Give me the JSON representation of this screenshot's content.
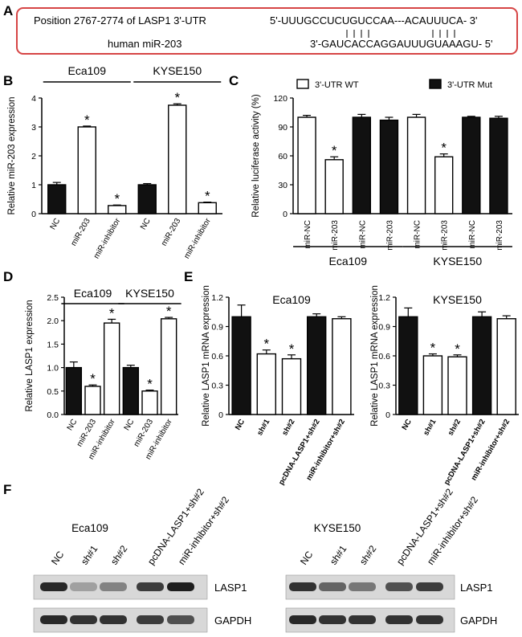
{
  "panels": {
    "A": "A",
    "B": "B",
    "C": "C",
    "D": "D",
    "E": "E",
    "F": "F"
  },
  "panel_a": {
    "position_label": "Position 2767-2774 of LASP1 3'-UTR",
    "utr_sequence": "5'-UUUGCCUCUGUCCAA---ACAUUUCA- 3'",
    "pairing": "||||        ||||",
    "mir_label": "human miR-203",
    "mir_sequence": "3'-GAUCACCAGGAUUUGUAAAGU- 5'",
    "border_color": "#d64545"
  },
  "chart_data": [
    {
      "id": "B",
      "type": "bar",
      "ylabel": "Relative miR-203 expression",
      "ylim": [
        0,
        4
      ],
      "yticks": [
        0,
        1,
        2,
        3,
        4
      ],
      "categories": [
        "NC",
        "miR-203",
        "miR-inhibitor",
        "NC",
        "miR-203",
        "miR-inhibitor"
      ],
      "values": [
        1.0,
        3.0,
        0.28,
        1.0,
        3.75,
        0.38
      ],
      "errors": [
        0.08,
        0.03,
        0.02,
        0.04,
        0.05,
        0.02
      ],
      "fills": [
        "black",
        "white",
        "white",
        "black",
        "white",
        "white"
      ],
      "significance": [
        "",
        "*",
        "*",
        "",
        "*",
        "*"
      ],
      "groups": [
        {
          "label": "Eca109",
          "from": 0,
          "to": 2
        },
        {
          "label": "KYSE150",
          "from": 3,
          "to": 5
        }
      ]
    },
    {
      "id": "C",
      "type": "bar",
      "ylabel": "Relative luciferase activity (%)",
      "ylim": [
        0,
        120
      ],
      "yticks": [
        0,
        30,
        60,
        90,
        120
      ],
      "categories": [
        "miR-NC",
        "miR-203",
        "miR-NC",
        "miR-203",
        "miR-NC",
        "miR-203",
        "miR-NC",
        "miR-203"
      ],
      "values": [
        100,
        56,
        100,
        97,
        100,
        59,
        100,
        99
      ],
      "errors": [
        2,
        3,
        3,
        3,
        3,
        3,
        1,
        2
      ],
      "fills": [
        "white",
        "white",
        "black",
        "black",
        "white",
        "white",
        "black",
        "black"
      ],
      "significance": [
        "",
        "*",
        "",
        "",
        "",
        "*",
        "",
        ""
      ],
      "legend": [
        {
          "label": "3'-UTR WT",
          "fill": "white"
        },
        {
          "label": "3'-UTR Mut",
          "fill": "black"
        }
      ],
      "groups": [
        {
          "label": "Eca109",
          "from": 0,
          "to": 3
        },
        {
          "label": "KYSE150",
          "from": 4,
          "to": 7
        }
      ]
    },
    {
      "id": "D",
      "type": "bar",
      "ylabel": "Relative LASP1 expression",
      "ylim": [
        0,
        2.5
      ],
      "yticks": [
        0.0,
        0.5,
        1.0,
        1.5,
        2.0,
        2.5
      ],
      "categories": [
        "NC",
        "miR-203",
        "miR-inhibitor",
        "NC",
        "miR-203",
        "miR-inhibitor"
      ],
      "values": [
        1.0,
        0.6,
        1.95,
        1.0,
        0.5,
        2.04
      ],
      "errors": [
        0.12,
        0.03,
        0.08,
        0.05,
        0.02,
        0.03
      ],
      "fills": [
        "black",
        "white",
        "white",
        "black",
        "white",
        "white"
      ],
      "significance": [
        "",
        "*",
        "*",
        "",
        "*",
        "*"
      ],
      "groups": [
        {
          "label": "Eca109",
          "from": 0,
          "to": 2
        },
        {
          "label": "KYSE150",
          "from": 3,
          "to": 5
        }
      ]
    },
    {
      "id": "E1",
      "type": "bar",
      "title": "Eca109",
      "ylabel": "Relative LASP1 mRNA expression",
      "ylim": [
        0,
        1.2
      ],
      "yticks": [
        0.0,
        0.3,
        0.6,
        0.9,
        1.2
      ],
      "categories": [
        "NC",
        "sh#1",
        "sh#2",
        "pcDNA-LASP1+sh#2",
        "miR-inhibitor+sh#2"
      ],
      "values": [
        1.0,
        0.62,
        0.57,
        1.0,
        0.98
      ],
      "errors": [
        0.12,
        0.04,
        0.04,
        0.03,
        0.02
      ],
      "fills": [
        "black",
        "white",
        "white",
        "black",
        "white"
      ],
      "significance": [
        "",
        "*",
        "*",
        "",
        ""
      ]
    },
    {
      "id": "E2",
      "type": "bar",
      "title": "KYSE150",
      "ylabel": "Relative LASP1 mRNA expression",
      "ylim": [
        0,
        1.2
      ],
      "yticks": [
        0.0,
        0.3,
        0.6,
        0.9,
        1.2
      ],
      "categories": [
        "NC",
        "sh#1",
        "sh#2",
        "pcDNA-LASP1+sh#2",
        "miR-inhibitor+sh#2"
      ],
      "values": [
        1.0,
        0.6,
        0.59,
        1.0,
        0.98
      ],
      "errors": [
        0.09,
        0.02,
        0.02,
        0.05,
        0.03
      ],
      "fills": [
        "black",
        "white",
        "white",
        "black",
        "white"
      ],
      "significance": [
        "",
        "*",
        "*",
        "",
        ""
      ]
    }
  ],
  "panel_f": {
    "blots": [
      {
        "cell_line": "Eca109",
        "lanes": [
          "NC",
          "sh#1",
          "sh#2",
          "pcDNA-LASP1+sh#2",
          "miR-inhibitor+sh#2"
        ],
        "bands": [
          {
            "protein": "LASP1",
            "intensities": [
              0.95,
              0.35,
              0.5,
              0.85,
              1.0
            ]
          },
          {
            "protein": "GAPDH",
            "intensities": [
              0.95,
              0.9,
              0.9,
              0.85,
              0.75
            ]
          }
        ]
      },
      {
        "cell_line": "KYSE150",
        "lanes": [
          "NC",
          "sh#1",
          "sh#2",
          "pcDNA-LASP1+sh#2",
          "miR-inhibitor+sh#2"
        ],
        "bands": [
          {
            "protein": "LASP1",
            "intensities": [
              0.9,
              0.65,
              0.55,
              0.75,
              0.85
            ]
          },
          {
            "protein": "GAPDH",
            "intensities": [
              0.95,
              0.9,
              0.9,
              0.9,
              0.9
            ]
          }
        ]
      }
    ]
  }
}
